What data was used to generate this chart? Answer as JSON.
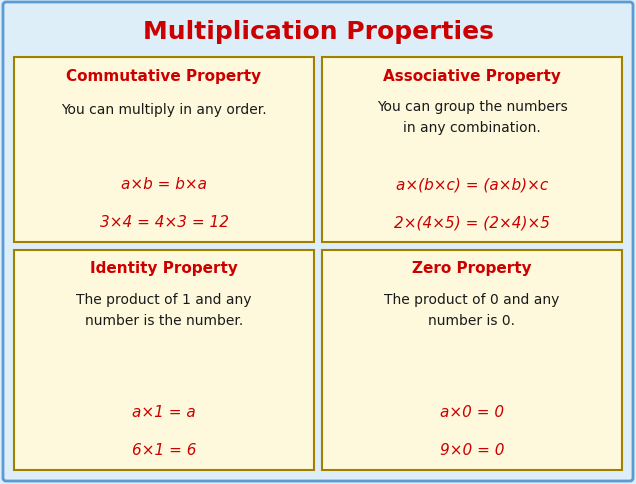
{
  "title": "Multiplication Properties",
  "title_color": "#cc0000",
  "title_fontsize": 18,
  "background_color": "#ddeef8",
  "outer_border_color": "#5b9bd5",
  "card_bg_color": "#fef9dc",
  "card_border_color": "#a08000",
  "heading_color": "#cc0000",
  "body_color": "#1a1a1a",
  "formula_color": "#cc0000",
  "cards": [
    {
      "heading": "Commutative Property",
      "body": "You can multiply in any order.",
      "formula1": "a×b = b×a",
      "formula2": "3×4 = 4×3 = 12"
    },
    {
      "heading": "Associative Property",
      "body": "You can group the numbers\nin any combination.",
      "formula1": "a×(b×c) = (a×b)×c",
      "formula2": "2×(4×5) = (2×4)×5"
    },
    {
      "heading": "Identity Property",
      "body": "The product of 1 and any\nnumber is the number.",
      "formula1": "a×1 = a",
      "formula2": "6×1 = 6"
    },
    {
      "heading": "Zero Property",
      "body": "The product of 0 and any\nnumber is 0.",
      "formula1": "a×0 = 0",
      "formula2": "9×0 = 0"
    }
  ]
}
